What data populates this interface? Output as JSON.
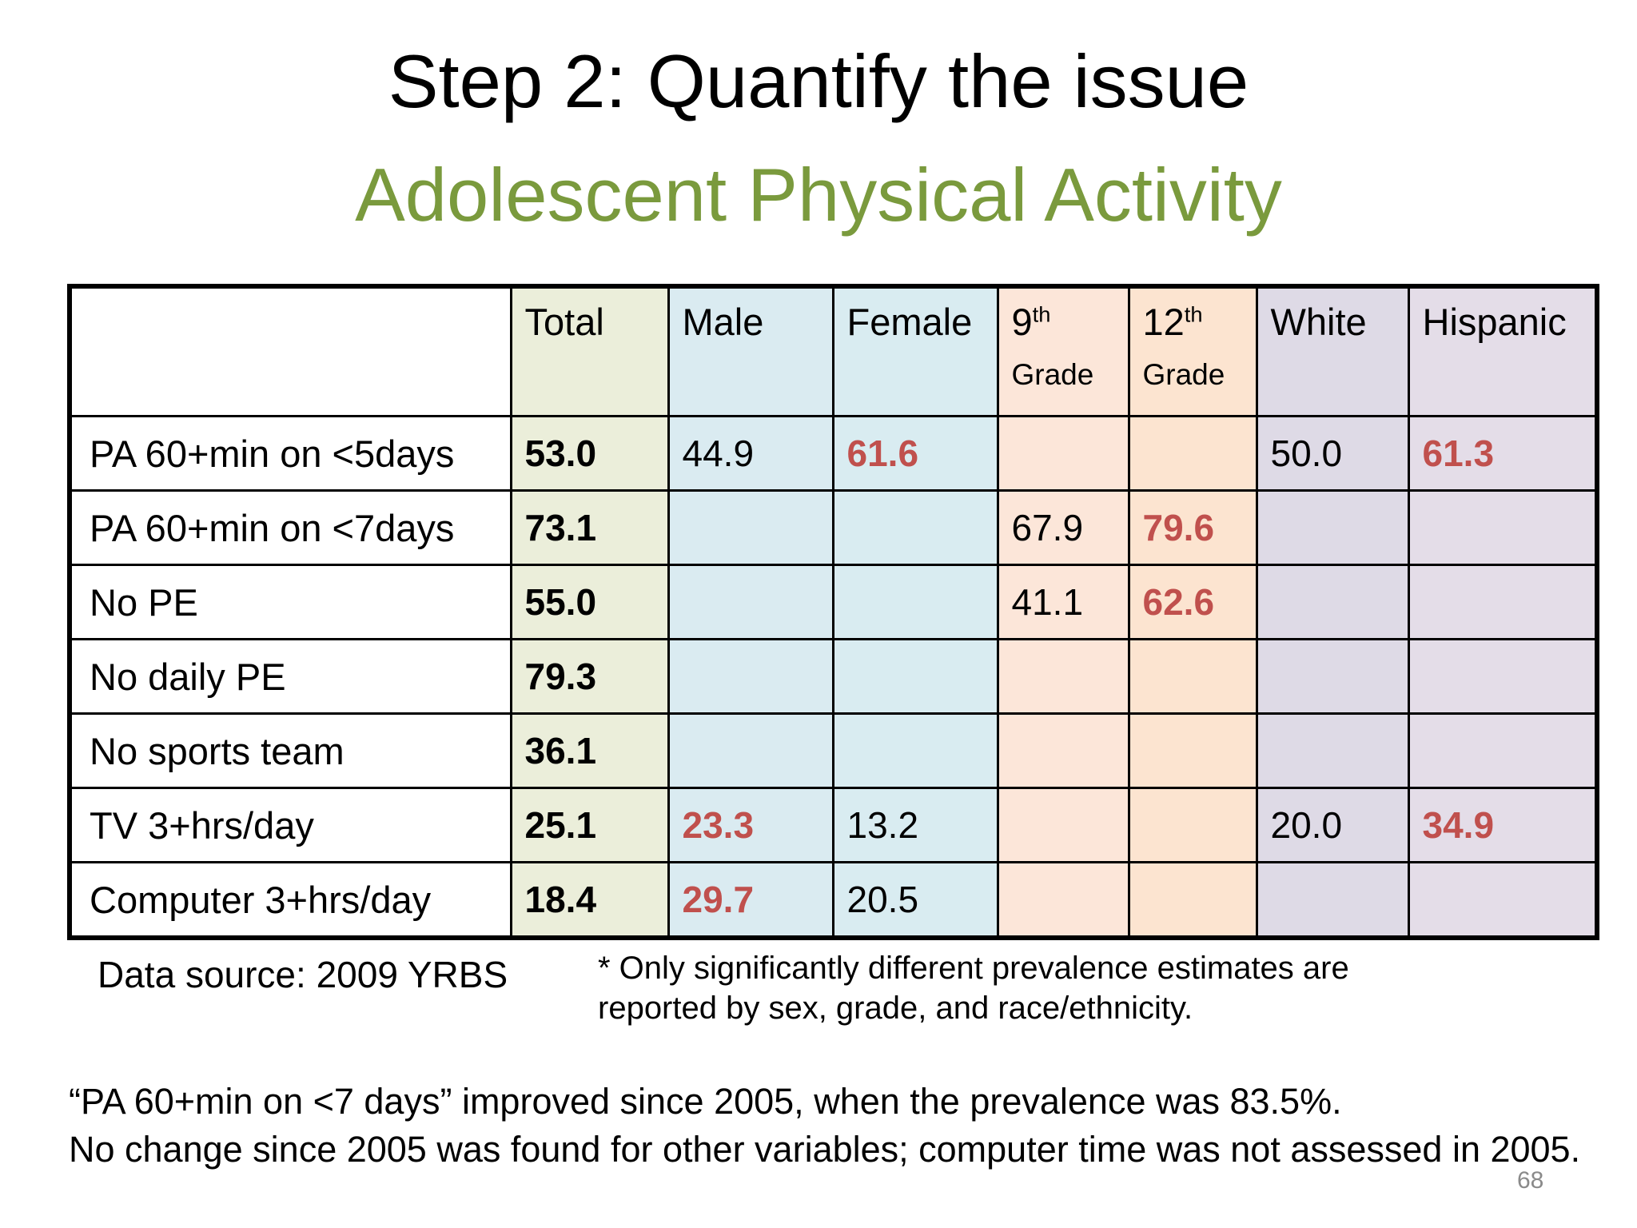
{
  "title": {
    "line1": "Step 2: Quantify the issue",
    "line2": "Adolescent Physical Activity"
  },
  "colors": {
    "title_green": "#7a9a3d",
    "accent_red": "#c0504d",
    "col_total": "#ebeeda",
    "col_male": "#daebf1",
    "col_female": "#d9ecf1",
    "col_grade9": "#fce6d9",
    "col_grade12": "#fce4d0",
    "col_white": "#dedae6",
    "col_hispanic": "#e4dde8"
  },
  "table": {
    "columns": [
      {
        "key": "total",
        "label": "Total",
        "sup": "",
        "sub": "",
        "bg": "#ebeeda"
      },
      {
        "key": "male",
        "label": "Male",
        "sup": "",
        "sub": "",
        "bg": "#daebf1"
      },
      {
        "key": "female",
        "label": "Female",
        "sup": "",
        "sub": "",
        "bg": "#d9ecf1"
      },
      {
        "key": "grade9",
        "label": "9",
        "sup": "th",
        "sub": "Grade",
        "bg": "#fce6d9"
      },
      {
        "key": "grade12",
        "label": "12",
        "sup": "th",
        "sub": "Grade",
        "bg": "#fce4d0"
      },
      {
        "key": "white",
        "label": "White",
        "sup": "",
        "sub": "",
        "bg": "#dedae6"
      },
      {
        "key": "hispanic",
        "label": "Hispanic",
        "sup": "",
        "sub": "",
        "bg": "#e4dde8"
      }
    ],
    "rows": [
      {
        "label": "PA 60+min on <5days",
        "cells": [
          {
            "v": "53.0",
            "s": "b"
          },
          {
            "v": "44.9",
            "s": ""
          },
          {
            "v": "61.6",
            "s": "r"
          },
          {},
          {},
          {
            "v": "50.0",
            "s": ""
          },
          {
            "v": "61.3",
            "s": "r"
          }
        ]
      },
      {
        "label": "PA 60+min on <7days",
        "cells": [
          {
            "v": "73.1",
            "s": "b"
          },
          {},
          {},
          {
            "v": "67.9",
            "s": ""
          },
          {
            "v": "79.6",
            "s": "r"
          },
          {},
          {}
        ]
      },
      {
        "label": "No PE",
        "cells": [
          {
            "v": "55.0",
            "s": "b"
          },
          {},
          {},
          {
            "v": "41.1",
            "s": ""
          },
          {
            "v": "62.6",
            "s": "r"
          },
          {},
          {}
        ]
      },
      {
        "label": "No daily PE",
        "cells": [
          {
            "v": "79.3",
            "s": "b"
          },
          {},
          {},
          {},
          {},
          {},
          {}
        ]
      },
      {
        "label": "No sports team",
        "cells": [
          {
            "v": "36.1",
            "s": "b"
          },
          {},
          {},
          {},
          {},
          {},
          {}
        ]
      },
      {
        "label": "TV 3+hrs/day",
        "cells": [
          {
            "v": "25.1",
            "s": "b"
          },
          {
            "v": "23.3",
            "s": "r"
          },
          {
            "v": "13.2",
            "s": ""
          },
          {},
          {},
          {
            "v": "20.0",
            "s": ""
          },
          {
            "v": "34.9",
            "s": "r"
          }
        ]
      },
      {
        "label": "Computer 3+hrs/day",
        "cells": [
          {
            "v": "18.4",
            "s": "b"
          },
          {
            "v": "29.7",
            "s": "r"
          },
          {
            "v": "20.5",
            "s": ""
          },
          {},
          {},
          {},
          {}
        ]
      }
    ]
  },
  "footer": {
    "data_source": "Data source: 2009 YRBS",
    "note_line1": "* Only significantly different prevalence estimates are",
    "note_line2": "reported by sex, grade, and race/ethnicity.",
    "footnote_line1": "“PA 60+min on <7 days” improved since 2005, when the prevalence was 83.5%.",
    "footnote_line2": "No change since 2005 was found for other variables; computer time was not assessed in 2005."
  },
  "page": {
    "number": "68"
  }
}
